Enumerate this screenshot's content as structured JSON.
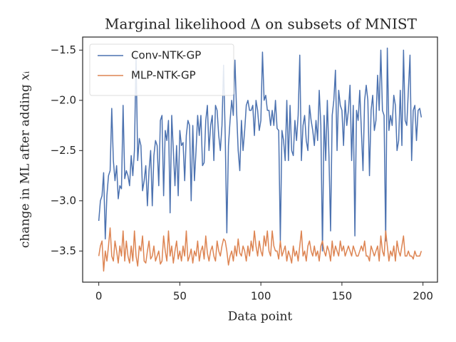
{
  "chart_data": {
    "type": "line",
    "title": "Marginal likelihood Δ on subsets of MNIST",
    "xlabel": "Data point",
    "ylabel": "change in ML after adding 𝑥ᵢ",
    "x": [
      0,
      1,
      2,
      3,
      4,
      5,
      6,
      7,
      8,
      9,
      10,
      11,
      12,
      13,
      14,
      15,
      16,
      17,
      18,
      19,
      20,
      21,
      22,
      23,
      24,
      25,
      26,
      27,
      28,
      29,
      30,
      31,
      32,
      33,
      34,
      35,
      36,
      37,
      38,
      39,
      40,
      41,
      42,
      43,
      44,
      45,
      46,
      47,
      48,
      49,
      50,
      51,
      52,
      53,
      54,
      55,
      56,
      57,
      58,
      59,
      60,
      61,
      62,
      63,
      64,
      65,
      66,
      67,
      68,
      69,
      70,
      71,
      72,
      73,
      74,
      75,
      76,
      77,
      78,
      79,
      80,
      81,
      82,
      83,
      84,
      85,
      86,
      87,
      88,
      89,
      90,
      91,
      92,
      93,
      94,
      95,
      96,
      97,
      98,
      99,
      100,
      101,
      102,
      103,
      104,
      105,
      106,
      107,
      108,
      109,
      110,
      111,
      112,
      113,
      114,
      115,
      116,
      117,
      118,
      119,
      120,
      121,
      122,
      123,
      124,
      125,
      126,
      127,
      128,
      129,
      130,
      131,
      132,
      133,
      134,
      135,
      136,
      137,
      138,
      139,
      140,
      141,
      142,
      143,
      144,
      145,
      146,
      147,
      148,
      149,
      150,
      151,
      152,
      153,
      154,
      155,
      156,
      157,
      158,
      159,
      160,
      161,
      162,
      163,
      164,
      165,
      166,
      167,
      168,
      169,
      170,
      171,
      172,
      173,
      174,
      175,
      176,
      177,
      178,
      179,
      180,
      181,
      182,
      183,
      184,
      185,
      186,
      187,
      188,
      189,
      190,
      191,
      192,
      193,
      194,
      195,
      196,
      197,
      198,
      199
    ],
    "series": [
      {
        "name": "Conv-NTK-GP",
        "color": "#4c72b0",
        "values": [
          -3.2,
          -3.0,
          -2.95,
          -2.72,
          -3.38,
          -2.95,
          -2.75,
          -2.7,
          -2.08,
          -2.6,
          -2.8,
          -2.65,
          -2.98,
          -2.85,
          -2.88,
          -2.05,
          -2.78,
          -2.7,
          -2.75,
          -2.85,
          -2.55,
          -2.75,
          -2.5,
          -1.55,
          -2.6,
          -2.38,
          -2.45,
          -2.9,
          -2.8,
          -2.65,
          -3.05,
          -2.7,
          -2.5,
          -3.05,
          -2.55,
          -2.4,
          -2.45,
          -2.85,
          -2.2,
          -2.15,
          -2.95,
          -2.3,
          -2.4,
          -2.2,
          -3.12,
          -2.15,
          -2.5,
          -2.85,
          -2.45,
          -2.95,
          -2.3,
          -2.45,
          -2.42,
          -2.8,
          -2.35,
          -2.2,
          -2.25,
          -3.0,
          -2.25,
          -2.8,
          -2.5,
          -2.15,
          -2.35,
          -2.15,
          -2.65,
          -2.62,
          -2.2,
          -2.05,
          -2.5,
          -2.25,
          -2.15,
          -2.6,
          -2.05,
          -2.1,
          -2.35,
          -2.5,
          -2.25,
          -1.65,
          -2.35,
          -3.32,
          -2.45,
          -2.2,
          -2.0,
          -2.15,
          -1.6,
          -2.1,
          -2.5,
          -2.7,
          -2.2,
          -2.5,
          -2.3,
          -2.05,
          -2.0,
          -2.1,
          -2.1,
          -2.05,
          -2.35,
          -2.0,
          -2.1,
          -2.3,
          -2.2,
          -1.52,
          -2.0,
          -1.95,
          -2.1,
          -2.1,
          -2.25,
          -2.1,
          -2.25,
          -2.0,
          -2.28,
          -2.3,
          -3.4,
          -2.3,
          -2.4,
          -2.6,
          -2.0,
          -2.6,
          -2.05,
          -2.5,
          -2.55,
          -2.2,
          -2.4,
          -2.15,
          -1.55,
          -2.6,
          -2.25,
          -2.15,
          -2.4,
          -2.5,
          -2.05,
          -2.2,
          -2.3,
          -2.45,
          -2.2,
          -2.4,
          -1.9,
          -2.25,
          -3.5,
          -2.15,
          -2.6,
          -2.0,
          -2.55,
          -3.3,
          -2.15,
          -2.0,
          -1.7,
          -2.5,
          -1.9,
          -2.05,
          -2.1,
          -2.45,
          -2.0,
          -2.25,
          -2.1,
          -1.85,
          -2.6,
          -2.05,
          -3.35,
          -2.1,
          -2.2,
          -1.9,
          -2.3,
          -2.7,
          -2.0,
          -1.85,
          -2.0,
          -2.75,
          -2.1,
          -1.95,
          -2.3,
          -2.2,
          -1.75,
          -2.1,
          -1.5,
          -2.1,
          -2.15,
          -3.4,
          -1.48,
          -2.3,
          -2.15,
          -2.25,
          -1.95,
          -2.05,
          -2.5,
          -2.4,
          -1.9,
          -2.45,
          -1.5,
          -2.2,
          -2.25,
          -1.9,
          -1.55,
          -2.6,
          -2.1,
          -2.05,
          -2.4,
          -2.1,
          -2.08,
          -2.17
        ]
      },
      {
        "name": "MLP-NTK-GP",
        "color": "#dd8452",
        "values": [
          -3.55,
          -3.45,
          -3.4,
          -3.7,
          -3.5,
          -3.6,
          -3.45,
          -3.27,
          -3.55,
          -3.6,
          -3.4,
          -3.5,
          -3.62,
          -3.45,
          -3.55,
          -3.3,
          -3.6,
          -3.4,
          -3.55,
          -3.62,
          -3.45,
          -3.6,
          -3.3,
          -3.55,
          -3.65,
          -3.45,
          -3.5,
          -3.35,
          -3.6,
          -3.62,
          -3.5,
          -3.4,
          -3.58,
          -3.55,
          -3.45,
          -3.6,
          -3.55,
          -3.5,
          -3.63,
          -3.6,
          -3.35,
          -3.5,
          -3.6,
          -3.3,
          -3.55,
          -3.45,
          -3.62,
          -3.5,
          -3.4,
          -3.58,
          -3.5,
          -3.6,
          -3.45,
          -3.55,
          -3.3,
          -3.6,
          -3.55,
          -3.48,
          -3.62,
          -3.5,
          -3.55,
          -3.4,
          -3.6,
          -3.5,
          -3.45,
          -3.58,
          -3.35,
          -3.52,
          -3.6,
          -3.5,
          -3.45,
          -3.55,
          -3.6,
          -3.4,
          -3.5,
          -3.55,
          -3.45,
          -3.38,
          -3.4,
          -3.5,
          -3.64,
          -3.55,
          -3.5,
          -3.6,
          -3.45,
          -3.55,
          -3.38,
          -3.52,
          -3.55,
          -3.45,
          -3.5,
          -3.6,
          -3.45,
          -3.55,
          -3.4,
          -3.5,
          -3.3,
          -3.45,
          -3.55,
          -3.4,
          -3.5,
          -3.55,
          -3.35,
          -3.45,
          -3.3,
          -3.5,
          -3.55,
          -3.3,
          -3.45,
          -3.5,
          -3.5,
          -3.58,
          -3.4,
          -3.55,
          -3.5,
          -3.45,
          -3.6,
          -3.5,
          -3.55,
          -3.62,
          -3.45,
          -3.55,
          -3.5,
          -3.6,
          -3.45,
          -3.3,
          -3.55,
          -3.5,
          -3.6,
          -3.45,
          -3.4,
          -3.5,
          -3.55,
          -3.45,
          -3.55,
          -3.5,
          -3.6,
          -3.45,
          -3.4,
          -3.5,
          -3.55,
          -3.45,
          -3.5,
          -3.6,
          -3.4,
          -3.55,
          -3.45,
          -3.5,
          -3.55,
          -3.4,
          -3.5,
          -3.45,
          -3.55,
          -3.5,
          -3.45,
          -3.5,
          -3.55,
          -3.45,
          -3.5,
          -3.55,
          -3.55,
          -3.5,
          -3.45,
          -3.5,
          -3.4,
          -3.55,
          -3.55,
          -3.6,
          -3.45,
          -3.5,
          -3.55,
          -3.5,
          -3.45,
          -3.6,
          -3.35,
          -3.5,
          -3.55,
          -3.3,
          -3.45,
          -3.6,
          -3.5,
          -3.55,
          -3.45,
          -3.6,
          -3.4,
          -3.5,
          -3.55,
          -3.45,
          -3.35,
          -3.55,
          -3.55,
          -3.5,
          -3.55,
          -3.55,
          -3.58,
          -3.5,
          -3.55,
          -3.55,
          -3.55,
          -3.5
        ]
      }
    ],
    "xlim": [
      -9.95,
      208.95
    ],
    "ylim": [
      -3.81,
      -1.37
    ],
    "xticks": [
      0,
      50,
      100,
      150,
      200
    ],
    "yticks": [
      {
        "value": -3.5,
        "label": "−3.5"
      },
      {
        "value": -3.0,
        "label": "−3.0"
      },
      {
        "value": -2.5,
        "label": "−2.5"
      },
      {
        "value": -2.0,
        "label": "−2.0"
      },
      {
        "value": -1.5,
        "label": "−1.5"
      }
    ],
    "legend": "upper left"
  }
}
